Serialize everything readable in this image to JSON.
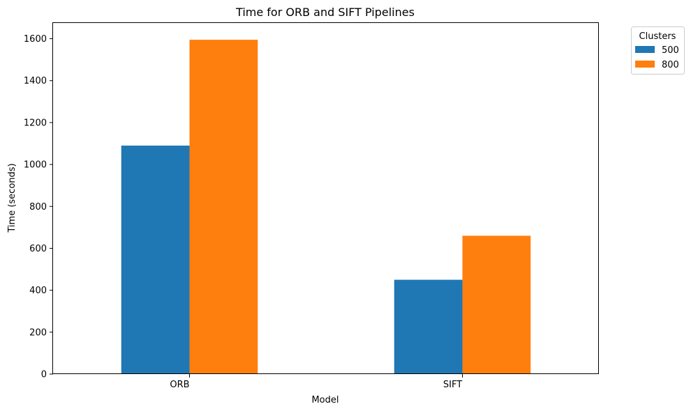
{
  "chart_data": {
    "type": "bar",
    "title": "Time for ORB and SIFT Pipelines",
    "xlabel": "Model",
    "ylabel": "Time (seconds)",
    "categories": [
      "ORB",
      "SIFT"
    ],
    "series": [
      {
        "name": "500",
        "values": [
          1090,
          450
        ],
        "color": "#1f77b4"
      },
      {
        "name": "800",
        "values": [
          1595,
          660
        ],
        "color": "#ff7f0e"
      }
    ],
    "ylim": [
      0,
      1675
    ],
    "yticks": [
      0,
      200,
      400,
      600,
      800,
      1000,
      1200,
      1400,
      1600
    ],
    "grid": false,
    "legend": {
      "title": "Clusters",
      "placement": "outside-top-right"
    }
  }
}
